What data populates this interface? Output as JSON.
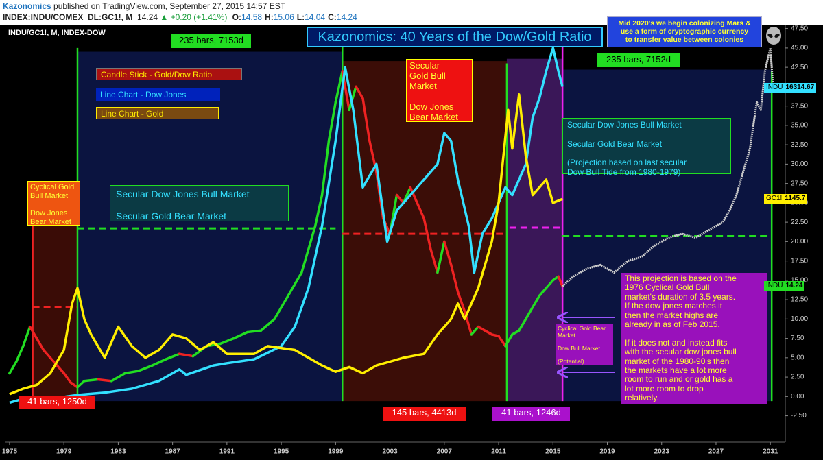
{
  "header": {
    "author": "Kazonomics",
    "published": "published on TradingView.com, September 27, 2015 14:57 EST",
    "symbol": "INDEX:INDU/COMEX_DL:GC1!, M",
    "price": 14.24,
    "change": "▲ +0.20 (+1.41%)",
    "ohlc": [
      {
        "label": "O:",
        "value": 14.58
      },
      {
        "label": "H:",
        "value": 15.06
      },
      {
        "label": "L:",
        "value": 14.04
      },
      {
        "label": "C:",
        "value": 14.24
      }
    ]
  },
  "chart_data": {
    "type": "line",
    "title": "Kazonomics: 40 Years of the Dow/Gold Ratio",
    "pane_label": "INDU/GC1!, M, INDEX-DOW",
    "xlim": [
      1974.7,
      2032.1
    ],
    "ylim": [
      -5.9,
      48
    ],
    "xticks": [
      1975,
      1979,
      1983,
      1987,
      1991,
      1995,
      1999,
      2003,
      2007,
      2011,
      2015,
      2019,
      2023,
      2027,
      2031
    ],
    "yticks": [
      {
        "value": -2.5,
        "label": "-2.50"
      },
      {
        "value": 0,
        "label": "0.00"
      },
      {
        "value": 2.5,
        "label": "2.50"
      },
      {
        "value": 5,
        "label": "5.00"
      },
      {
        "value": 7.5,
        "label": "7.50"
      },
      {
        "value": 10,
        "label": "10.00"
      },
      {
        "value": 12.5,
        "label": "12.50"
      },
      {
        "value": 15,
        "label": "15.00"
      },
      {
        "value": 17.5,
        "label": "17.50"
      },
      {
        "value": 20,
        "label": "20.00"
      },
      {
        "value": 22.5,
        "label": "22.50"
      },
      {
        "value": 25,
        "label": "25.00"
      },
      {
        "value": 27.5,
        "label": "27.50"
      },
      {
        "value": 30,
        "label": "30.00"
      },
      {
        "value": 32.5,
        "label": "32.50"
      },
      {
        "value": 35,
        "label": "35.00"
      },
      {
        "value": 37.5,
        "label": "37.50"
      },
      {
        "value": 40,
        "label": "40.00"
      },
      {
        "value": 42.5,
        "label": "42.50"
      },
      {
        "value": 45,
        "label": "45.00"
      },
      {
        "value": 47.5,
        "label": "47.50"
      }
    ],
    "series": [
      {
        "name": "Candle Stick - Gold/Dow Ratio",
        "color": "#22dd22",
        "down_color": "#ee2222",
        "style": "candle",
        "x": [
          1975.0,
          1975.5,
          1976.0,
          1976.5,
          1977.0,
          1977.5,
          1978.0,
          1978.5,
          1979.0,
          1979.5,
          1980.0,
          1980.5,
          1981.5,
          1982.5,
          1983.5,
          1984.5,
          1985.5,
          1986.5,
          1987.5,
          1988.5,
          1989.5,
          1990.5,
          1991.5,
          1992.5,
          1993.5,
          1994.5,
          1995.5,
          1996.5,
          1997.5,
          1998.0,
          1998.5,
          1999.0,
          1999.5,
          2000.0,
          2000.5,
          2001.0,
          2001.5,
          2002.0,
          2002.5,
          2003.0,
          2003.5,
          2004.0,
          2004.5,
          2005.0,
          2005.5,
          2006.0,
          2006.5,
          2007.0,
          2007.5,
          2008.0,
          2008.5,
          2009.0,
          2009.5,
          2010.0,
          2010.5,
          2011.0,
          2011.5,
          2012.0,
          2012.5,
          2013.0,
          2013.5,
          2014.0,
          2014.5,
          2015.0,
          2015.4,
          2015.7
        ],
        "values": [
          3.0,
          4.5,
          6.5,
          9.0,
          7.5,
          6.0,
          5.0,
          4.0,
          3.0,
          1.8,
          1.2,
          2.0,
          2.2,
          2.0,
          3.0,
          3.3,
          4.0,
          4.8,
          5.5,
          5.2,
          6.5,
          6.8,
          7.5,
          8.3,
          8.5,
          10.0,
          13.0,
          16.0,
          22.0,
          26.0,
          33.0,
          38.0,
          42.0,
          37.0,
          40.0,
          38.5,
          33.0,
          29.0,
          23.0,
          21.0,
          26.0,
          25.0,
          27.0,
          25.0,
          23.0,
          19.0,
          16.0,
          20.0,
          17.0,
          13.5,
          11.0,
          8.0,
          9.0,
          8.5,
          8.0,
          7.8,
          6.5,
          8.0,
          8.5,
          10.0,
          11.5,
          13.0,
          14.0,
          15.0,
          15.5,
          14.24
        ]
      },
      {
        "name": "Line Chart - Dow Jones",
        "color": "#33e0ff",
        "style": "line",
        "x": [
          1975,
          1976,
          1978,
          1980,
          1982,
          1984,
          1986,
          1987.5,
          1988,
          1990,
          1991,
          1993,
          1995,
          1996,
          1997,
          1998,
          1999,
          1999.7,
          2000.3,
          2001,
          2002,
          2002.8,
          2003.5,
          2004.5,
          2005.5,
          2006.5,
          2007,
          2007.5,
          2008,
          2008.8,
          2009.2,
          2009.8,
          2010.5,
          2011.5,
          2012,
          2013,
          2013.5,
          2014,
          2014.5,
          2015,
          2015.4,
          2015.7
        ],
        "values": [
          -0.8,
          -0.3,
          -0.3,
          0.2,
          0.5,
          1.0,
          2.0,
          3.5,
          2.8,
          4.0,
          4.3,
          4.8,
          6.5,
          9.0,
          14.0,
          22.0,
          33.0,
          42.5,
          37.0,
          27.0,
          30.0,
          20.0,
          24.0,
          26.0,
          28.0,
          30.0,
          34.0,
          33.0,
          28.0,
          22.0,
          16.0,
          21.0,
          23.0,
          27.0,
          26.0,
          30.0,
          36.0,
          38.5,
          42.0,
          45.0,
          42.0,
          40.0
        ]
      },
      {
        "name": "Line Chart - Gold",
        "color": "#ffee00",
        "style": "line",
        "x": [
          1975,
          1976,
          1977,
          1978,
          1979,
          1979.6,
          1980,
          1980.5,
          1981,
          1982,
          1983,
          1984,
          1985,
          1986,
          1987,
          1988,
          1989,
          1990,
          1991,
          1993,
          1994,
          1996,
          1997,
          1998,
          1999,
          2000,
          2001,
          2002,
          2003,
          2004,
          2005.5,
          2006.5,
          2007.5,
          2008,
          2008.5,
          2009.5,
          2010,
          2010.5,
          2011,
          2011.7,
          2012,
          2012.5,
          2013,
          2013.5,
          2014,
          2014.5,
          2015,
          2015.7
        ],
        "values": [
          0.3,
          1.0,
          1.5,
          3.0,
          6.0,
          12.0,
          14.0,
          10.0,
          8.0,
          5.0,
          9.0,
          6.5,
          5.0,
          6.0,
          8.0,
          7.5,
          6.0,
          7.0,
          5.5,
          5.5,
          6.5,
          6.0,
          5.0,
          4.0,
          3.2,
          3.8,
          3.0,
          4.0,
          4.5,
          5.0,
          5.5,
          8.0,
          10.0,
          12.0,
          10.0,
          14.0,
          17.0,
          20.0,
          25.0,
          37.0,
          32.0,
          39.0,
          31.0,
          26.0,
          27.0,
          28.0,
          25.0,
          25.5
        ]
      },
      {
        "color": "#cccccc",
        "style": "projection",
        "x": [
          2015.7,
          2016.5,
          2017.5,
          2018.5,
          2019.5,
          2020.5,
          2021.5,
          2022.5,
          2023.5,
          2024.5,
          2025.5,
          2026.5,
          2027.5,
          2028.0,
          2028.5,
          2029.0,
          2029.5,
          2030.0,
          2030.3,
          2030.6,
          2031.0,
          2031.2
        ],
        "values": [
          14.24,
          15.5,
          16.5,
          17.0,
          16.0,
          17.5,
          18.0,
          19.5,
          20.5,
          21.0,
          20.5,
          21.5,
          22.5,
          24.0,
          26.0,
          29.0,
          32.0,
          38.0,
          37.0,
          42.0,
          45.0,
          40.0
        ]
      }
    ],
    "regions": [
      {
        "x": [
          1976.7,
          1980.0
        ],
        "y": [
          -0.6,
          25.0
        ],
        "color": "#3a0c06"
      },
      {
        "x": [
          1980.0,
          1999.5
        ],
        "y": [
          -0.6,
          44.5
        ],
        "color": "#0b1440"
      },
      {
        "x": [
          1999.5,
          2011.6
        ],
        "y": [
          -0.6,
          43.3
        ],
        "color": "#3b0d07"
      },
      {
        "x": [
          2011.6,
          2015.7
        ],
        "y": [
          -0.6,
          43.6
        ],
        "color": "#3a1758"
      },
      {
        "x": [
          2015.7,
          2031.1
        ],
        "y": [
          -0.6,
          42.2
        ],
        "color": "#0b1440"
      }
    ],
    "guides": [
      {
        "x": [
          1976.7,
          1976.7
        ],
        "y": [
          -0.6,
          25.0
        ],
        "color": "#ee2222",
        "dash": false
      },
      {
        "x": [
          1980.0,
          1980.0
        ],
        "y": [
          -0.6,
          45.0
        ],
        "color": "#22dd22",
        "dash": false
      },
      {
        "x": [
          1999.5,
          1999.5
        ],
        "y": [
          -0.6,
          46.5
        ],
        "color": "#22dd22",
        "dash": false
      },
      {
        "x": [
          2011.6,
          2011.6
        ],
        "y": [
          -0.6,
          43.0
        ],
        "color": "#22dd22",
        "dash": false
      },
      {
        "x": [
          2015.7,
          2015.7
        ],
        "y": [
          -0.6,
          45.5
        ],
        "color": "#ee22ee",
        "dash": false
      },
      {
        "x": [
          2031.1,
          2031.1
        ],
        "y": [
          -0.6,
          42.0
        ],
        "color": "#22dd22",
        "dash": false
      },
      {
        "x": [
          1980.0,
          1999.0
        ],
        "y": [
          21.7,
          21.7
        ],
        "color": "#22dd22",
        "dash": true
      },
      {
        "x": [
          1999.5,
          2011.4
        ],
        "y": [
          21.0,
          21.0
        ],
        "color": "#ee2222",
        "dash": true
      },
      {
        "x": [
          2011.8,
          2015.5
        ],
        "y": [
          21.8,
          21.8
        ],
        "color": "#ee22ee",
        "dash": true
      },
      {
        "x": [
          2015.7,
          2031.1
        ],
        "y": [
          20.7,
          20.7
        ],
        "color": "#22dd22",
        "dash": true
      },
      {
        "x": [
          1976.7,
          1980.0
        ],
        "y": [
          11.5,
          11.5
        ],
        "color": "#ee2222",
        "dash": true
      }
    ],
    "price_tags": [
      {
        "label": "INDU",
        "value": 16314.67,
        "y": 39.8,
        "color": "#33e0ff"
      },
      {
        "label": "GC1!",
        "value": 1145.7,
        "y": 25.5,
        "color": "#ffee00"
      },
      {
        "label": "INDU",
        "value": 14.24,
        "y": 14.24,
        "color": "#22dd22"
      }
    ],
    "annotations": [
      "235 bars, 7153d",
      "Mid 2020's we begin colonizing Mars &\nuse a form of cryptographic currency\nto transfer value between colonies",
      "235 bars, 7152d",
      "Secular\nGold Bull\nMarket\n\nDow Jones\nBear Market",
      "Secular  Dow Jones Bull Market\n\nSecular Gold Bear Market\n\n(Projection based on last secular\nDow Bull Tide from 1980-1979)",
      "Cyclical Gold\nBull Market\n\nDow Jones\nBear Market",
      "Secular  Dow Jones Bull Market\n\nSecular Gold Bear Market",
      "This projection is based on the\n1976 Cyclical Gold Bull\nmarket's duration of 3.5 years.\nIf the dow jones matches it\nthen the market highs are\nalready in as of Feb 2015.\n\nIf it does not and instead fits\nwith the secular dow jones bull\nmarket of the 1980-90's then\nthe markets have a lot more\nroom to run and or gold has a\nlot more room to drop\nrelatively.",
      "Cyclical Gold Bear\nMarket\n\nDow Bull Market\n\n(Potential)",
      "41 bars, 1250d",
      "145 bars, 4413d",
      "41 bars, 1246d"
    ]
  }
}
